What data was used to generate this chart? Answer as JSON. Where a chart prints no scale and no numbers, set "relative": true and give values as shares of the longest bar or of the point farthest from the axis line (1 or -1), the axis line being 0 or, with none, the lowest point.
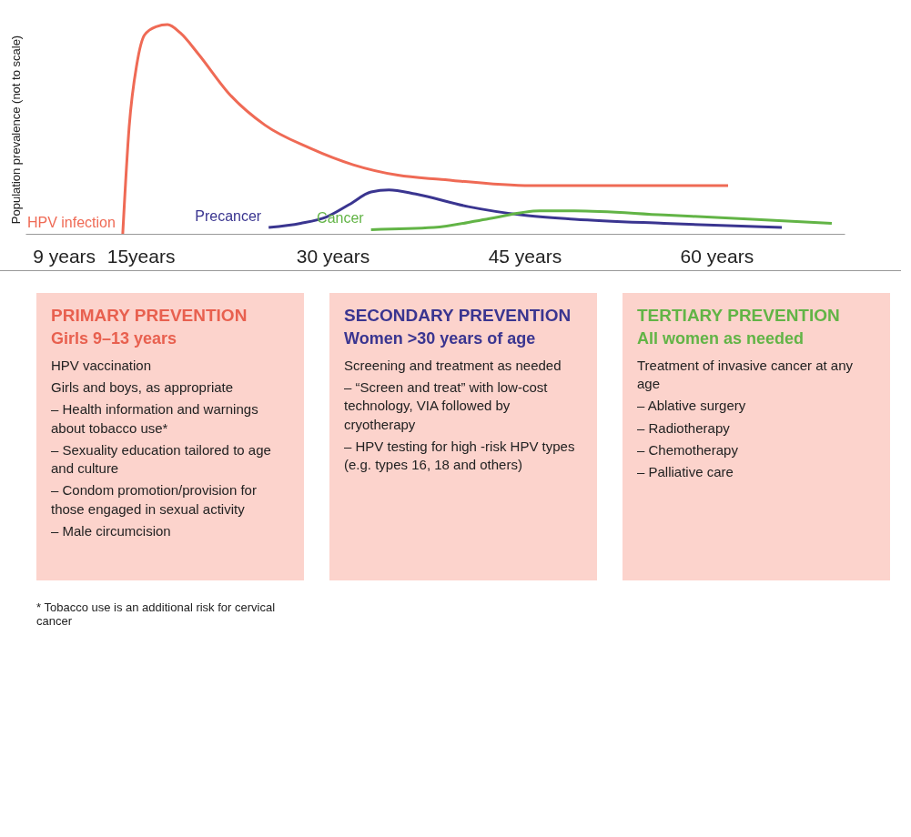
{
  "chart_data": [
    {
      "type": "line",
      "ylabel": "Population prevalence (not to scale)",
      "relative": true,
      "legend": false,
      "grid": false,
      "line_style": "solid",
      "xlim": [
        6,
        70
      ],
      "xticks": [
        {
          "value": 9,
          "label": "9 years"
        },
        {
          "value": 15,
          "label": "15years"
        },
        {
          "value": 30,
          "label": "30 years"
        },
        {
          "value": 45,
          "label": "45 years"
        },
        {
          "value": 60,
          "label": "60 years"
        }
      ],
      "series": [
        {
          "name": "HPV infection",
          "color": "#ef6a55",
          "x": [
            13.6,
            14.1,
            14.7,
            15.3,
            16.2,
            17.1,
            18.1,
            19.5,
            21.9,
            24.7,
            28.2,
            31.6,
            35.1,
            38.5,
            45.5,
            53.1,
            60.9
          ],
          "values": [
            0,
            0.51,
            0.81,
            0.95,
            0.99,
            1,
            0.96,
            0.86,
            0.67,
            0.52,
            0.41,
            0.33,
            0.28,
            0.26,
            0.23,
            0.23,
            0.23
          ]
        },
        {
          "name": "Precancer",
          "color": "#3a3590",
          "x": [
            25.0,
            27.5,
            29.5,
            31.3,
            33.0,
            34.4,
            36.5,
            40.6,
            44.8,
            48.9,
            55.9,
            65.1
          ],
          "values": [
            0.03,
            0.05,
            0.08,
            0.14,
            0.2,
            0.21,
            0.19,
            0.13,
            0.09,
            0.07,
            0.05,
            0.03
          ]
        },
        {
          "name": "Cancer",
          "color": "#62b446",
          "x": [
            33.0,
            37.9,
            42.0,
            46.2,
            48.9,
            55.9,
            62.8,
            69.0
          ],
          "values": [
            0.02,
            0.03,
            0.07,
            0.11,
            0.11,
            0.09,
            0.07,
            0.05
          ]
        }
      ],
      "annotations": [
        "* Tobacco use is an additional risk for cervical cancer"
      ]
    },
    {
      "type": "other",
      "title": "PRIMARY PREVENTION",
      "subtitle": "Girls 9–13 years",
      "color": "#e8604f",
      "annotations": [
        "HPV vaccination",
        "Girls and boys, as appropriate",
        "– Health information and warnings about tobacco use*",
        "– Sexuality education tailored to age and culture",
        "– Condom promotion/provision for those engaged in sexual activity",
        "– Male circumcision"
      ]
    },
    {
      "type": "other",
      "title": "SECONDARY PREVENTION",
      "subtitle": "Women >30 years of age",
      "color": "#3a3590",
      "annotations": [
        "Screening and treatment as needed",
        "– “Screen and treat” with low-cost technology, VIA followed by cryotherapy",
        "– HPV testing for high -risk HPV types (e.g. types 16, 18 and others)"
      ]
    },
    {
      "type": "other",
      "title": "TERTIARY PREVENTION",
      "subtitle": "All women as needed",
      "color": "#62b446",
      "annotations": [
        "Treatment of invasive cancer at any age",
        "– Ablative surgery",
        "– Radiotherapy",
        "– Chemotherapy",
        "– Palliative care"
      ]
    }
  ]
}
